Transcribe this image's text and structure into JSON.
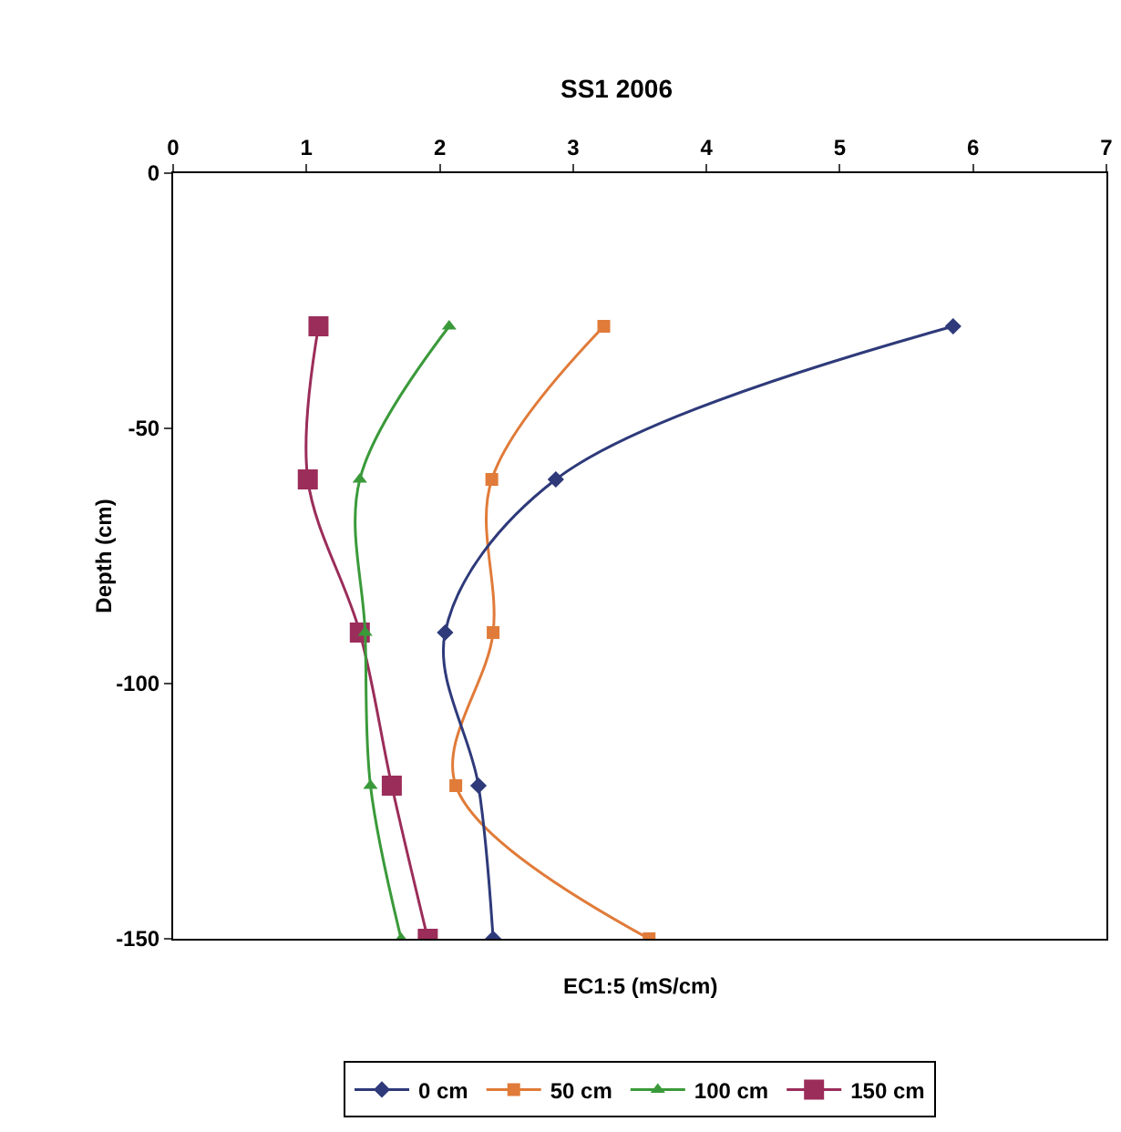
{
  "chart_data": {
    "type": "line",
    "title": "SS1 2006",
    "xlabel": "EC1:5 (mS/cm)",
    "ylabel": "Depth (cm)",
    "xlim": [
      0,
      7
    ],
    "xticks": [
      0,
      1,
      2,
      3,
      4,
      5,
      6,
      7
    ],
    "ylim": [
      -150,
      0
    ],
    "yticks": [
      -150,
      -100,
      -50,
      0
    ],
    "grid": false,
    "legend": "bottom",
    "line_style": "solid",
    "series": [
      {
        "name": "0 cm",
        "color": "#2e3a7a",
        "marker": "diamond",
        "x": [
          5.85,
          2.87,
          2.04,
          2.29,
          2.4
        ],
        "values": [
          -30,
          -60,
          -90,
          -120,
          -150
        ]
      },
      {
        "name": "50 cm",
        "color": "#e07b39",
        "marker": "square",
        "x": [
          3.23,
          2.39,
          2.4,
          2.12,
          3.57
        ],
        "values": [
          -30,
          -60,
          -90,
          -120,
          -150
        ]
      },
      {
        "name": "100 cm",
        "color": "#3a9a3a",
        "marker": "triangle",
        "x": [
          2.07,
          1.4,
          1.44,
          1.48,
          1.71
        ],
        "values": [
          -30,
          -60,
          -90,
          -120,
          -150
        ]
      },
      {
        "name": "150 cm",
        "color": "#9b2d5a",
        "marker": "square",
        "x": [
          1.09,
          1.01,
          1.4,
          1.64,
          1.91
        ],
        "values": [
          -30,
          -60,
          -90,
          -120,
          -150
        ]
      }
    ]
  }
}
